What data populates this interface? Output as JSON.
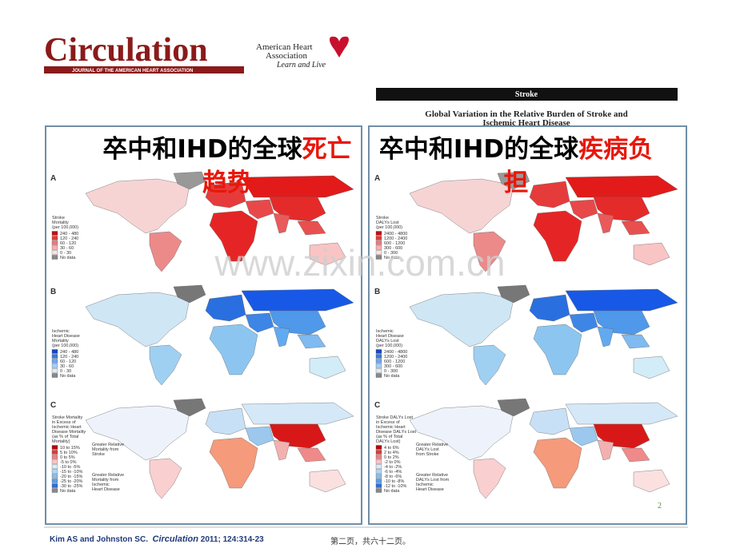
{
  "header": {
    "journal": "Circulation",
    "journal_subtitle": "JOURNAL OF THE AMERICAN HEART ASSOCIATION",
    "aha_name": [
      "American Heart",
      "Association"
    ],
    "aha_tagline": "Learn and Live"
  },
  "article": {
    "section": "Stroke",
    "title_lines": [
      "Global Variation in the Relative Burden of Stroke and",
      "Ischemic Heart Disease"
    ]
  },
  "panels": [
    {
      "title": "卒中和IHD的全球",
      "title_highlight": "死亡趋势",
      "maps": [
        {
          "label": "A",
          "legend_title": [
            "Stroke",
            "Mortality",
            "(per 100,000)"
          ],
          "legend_items": [
            "240 - 480",
            "120 - 240",
            "60 - 120",
            "30 - 60",
            "0 - 30",
            "No data"
          ],
          "notes": []
        },
        {
          "label": "B",
          "legend_title": [
            "Ischemic",
            "Heart Disease",
            "Mortality",
            "(per 100,000)"
          ],
          "legend_items": [
            "240 - 480",
            "120 - 240",
            "60 - 120",
            "30 - 60",
            "0 - 30",
            "No data"
          ],
          "notes": []
        },
        {
          "label": "C",
          "legend_title": [
            "Stroke Mortality",
            "in Excess of",
            "Ischemic Heart",
            "Disease Mortality",
            "(as % of Total",
            "Mortality)"
          ],
          "legend_items": [
            "10 to 15%",
            "5 to 10%",
            "0 to 5%",
            "-5 to 0%",
            "-10 to -5%",
            "-15 to -10%",
            "-20 to -15%",
            "-25 to -20%",
            "-30 to -25%",
            "No data"
          ],
          "notes": [
            [
              "Greater Relative",
              "Mortality from",
              "Stroke"
            ],
            [
              "Greater Relative",
              "Mortality from",
              "Ischemic",
              "Heart Disease"
            ]
          ]
        }
      ]
    },
    {
      "title": "卒中和IHD的全球",
      "title_highlight": "疾病负担",
      "maps": [
        {
          "label": "A",
          "legend_title": [
            "Stroke",
            "DALYs Lost",
            "(per 100,000)"
          ],
          "legend_items": [
            "2400 - 4800",
            "1200 - 2400",
            "600 - 1200",
            "300 - 600",
            "0 - 300",
            "No data"
          ],
          "notes": []
        },
        {
          "label": "B",
          "legend_title": [
            "Ischemic",
            "Heart Disease",
            "DALYs Lost",
            "(per 100,000)"
          ],
          "legend_items": [
            "2400 - 4800",
            "1200 - 2400",
            "600 - 1200",
            "300 - 600",
            "0 - 300",
            "No data"
          ],
          "notes": []
        },
        {
          "label": "C",
          "legend_title": [
            "Stroke DALYs Lost",
            "in Excess of",
            "Ischemic Heart",
            "Disease DALYs Lost",
            "(as % of Total",
            "DALYs Lost)"
          ],
          "legend_items": [
            "4 to 6%",
            "2 to 4%",
            "0 to 2%",
            "-2 to 0%",
            "-4 to -2%",
            "-6 to -4%",
            "-8 to -6%",
            "-10 to -8%",
            "-12 to -10%",
            "No data"
          ],
          "notes": [
            [
              "Greater Relative",
              "DALYs Lost",
              "from Stroke"
            ],
            [
              "Greater Relative",
              "DALYs Lost from",
              "Ischemic",
              "Heart Disease"
            ]
          ]
        }
      ]
    }
  ],
  "watermark": "www.zixin.com.cn",
  "page_number": "2",
  "citation": {
    "authors": "Kim AS and Johnston SC.",
    "journal": "Circulation",
    "details": "2011; 124:314-23"
  },
  "page_info": "第二页，共六十二页。"
}
